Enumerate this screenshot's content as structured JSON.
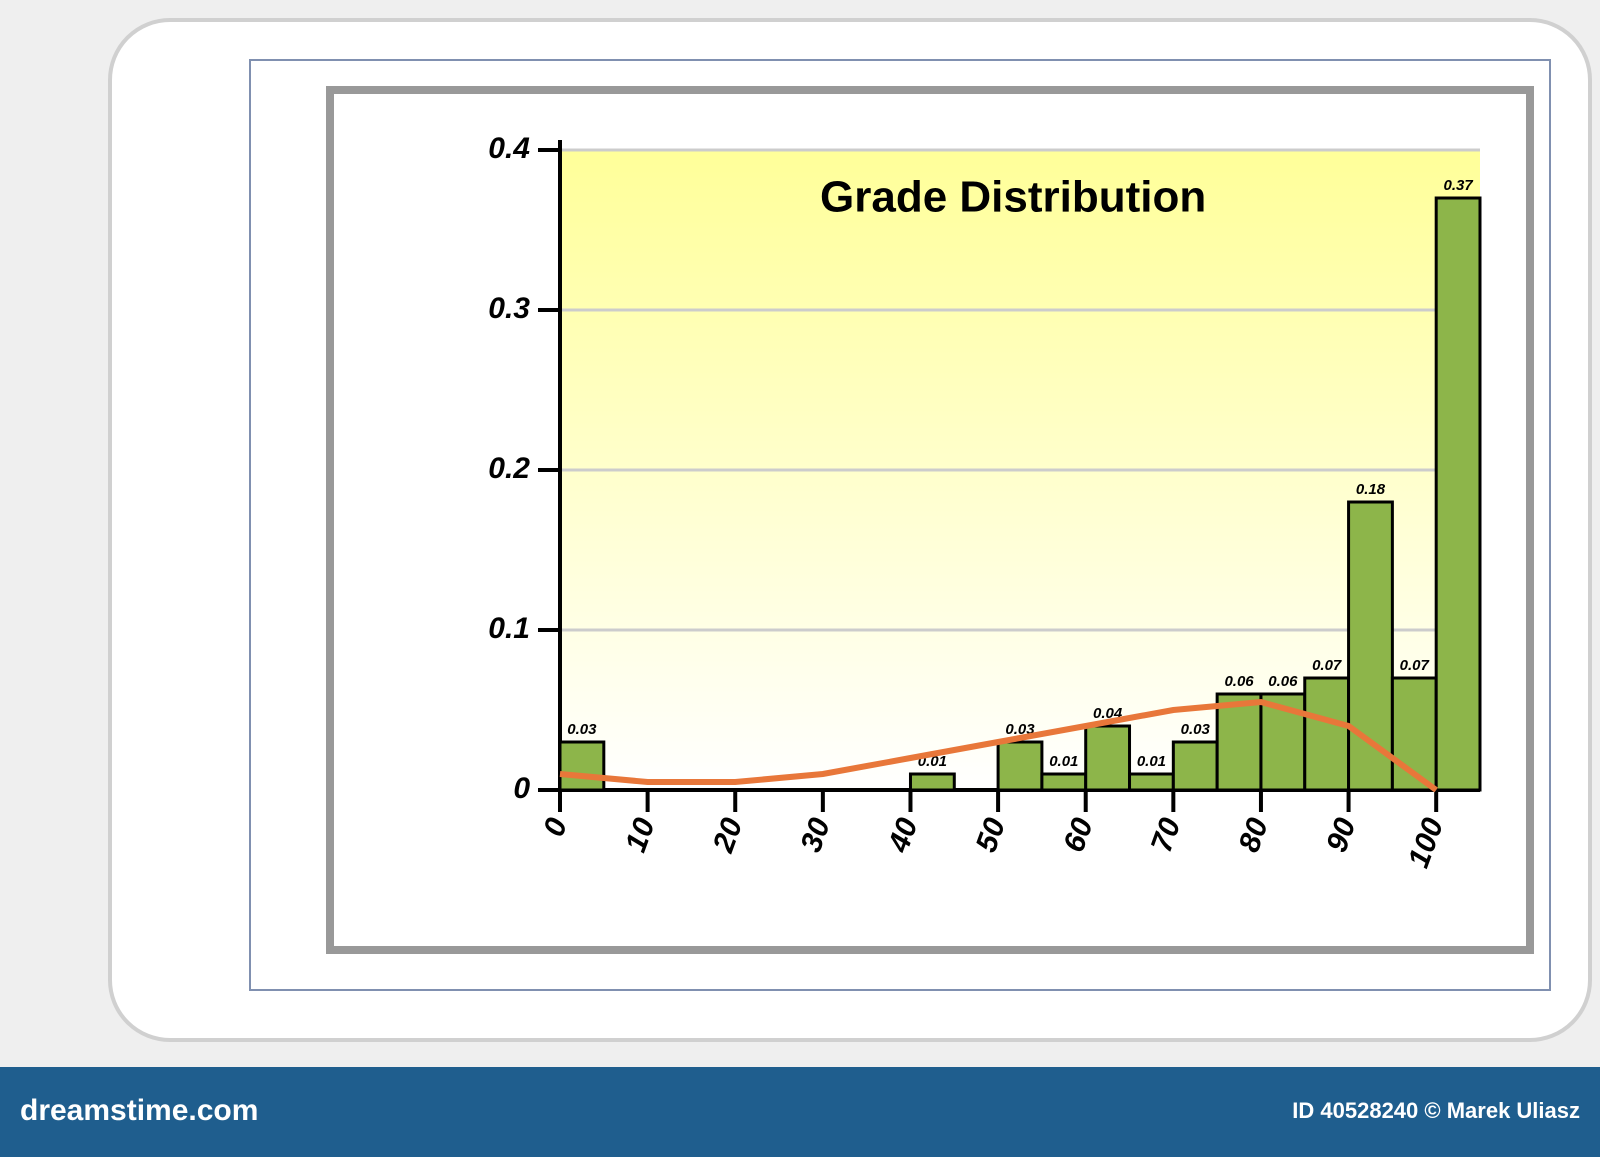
{
  "chart_data": {
    "type": "histogram",
    "title": "Grade Distribution",
    "bins": [
      0,
      5,
      10,
      15,
      20,
      25,
      30,
      35,
      40,
      45,
      50,
      55,
      60,
      65,
      70,
      75,
      80,
      85,
      90,
      95,
      100,
      105
    ],
    "counts": [
      0.03,
      0,
      0,
      0,
      0,
      0,
      0,
      0,
      0.01,
      0,
      0.03,
      0.01,
      0.04,
      0.01,
      0.03,
      0.06,
      0.06,
      0.07,
      0.18,
      0.07,
      0.37
    ],
    "color": "#8db54a",
    "curve": {
      "color": "#e8773a",
      "x": [
        0,
        10,
        20,
        30,
        40,
        50,
        60,
        70,
        80,
        90,
        100
      ],
      "y": [
        0.01,
        0.005,
        0.005,
        0.01,
        0.02,
        0.03,
        0.04,
        0.05,
        0.055,
        0.04,
        0
      ]
    },
    "xlim": [
      0,
      105
    ],
    "xticks": [
      0,
      10,
      20,
      30,
      40,
      50,
      60,
      70,
      80,
      90,
      100
    ],
    "ylim": [
      0,
      0.4
    ],
    "yticks": [
      0,
      0.1,
      0.2,
      0.3,
      0.4
    ],
    "grid": true
  },
  "footer": {
    "site": "dreamstime.com",
    "credit": "ID 40528240 © Marek Uliasz"
  }
}
